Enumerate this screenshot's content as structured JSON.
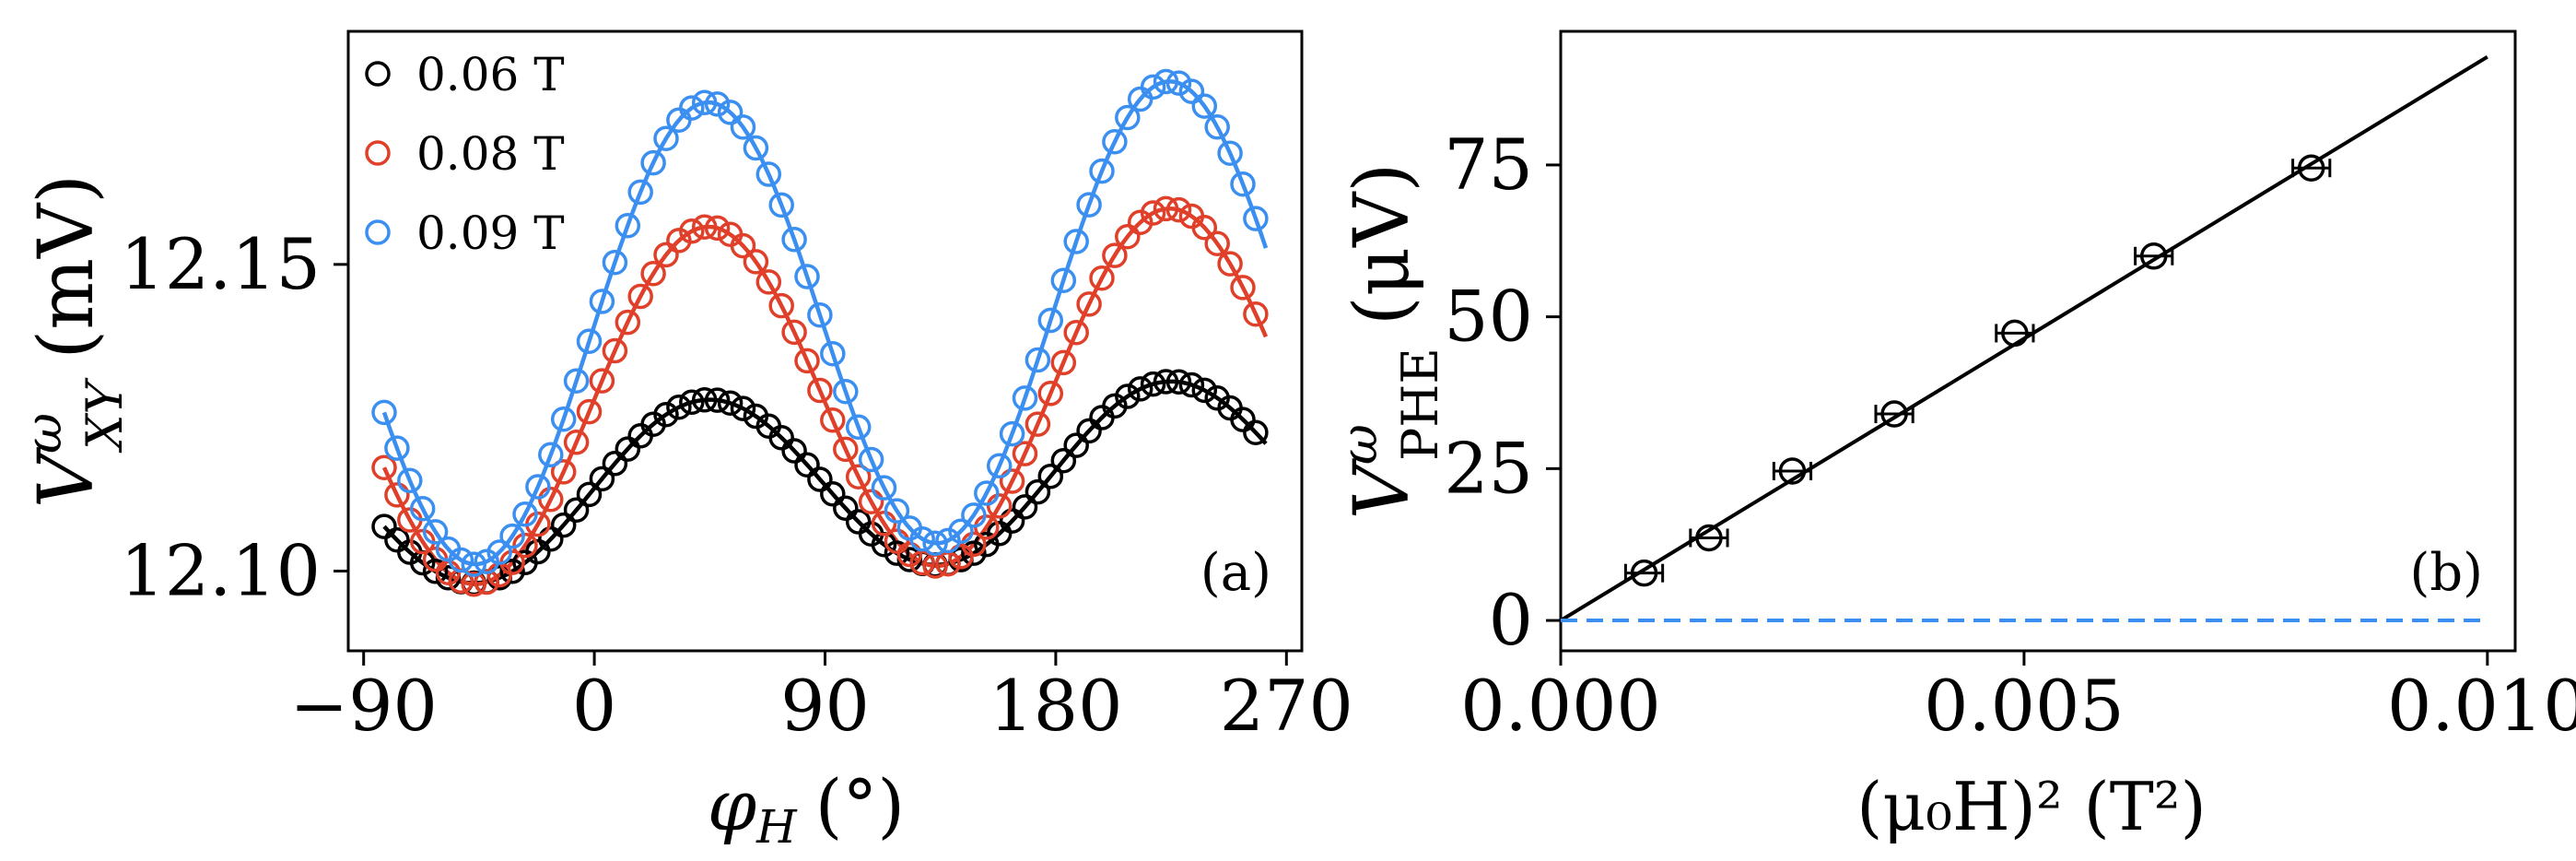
{
  "chart_data": [
    {
      "panel": "(a)",
      "type": "scatter",
      "xlabel_main": "φ",
      "xlabel_sub": "H",
      "xlabel_unit": "(°)",
      "ylabel_main": "V",
      "ylabel_sup": "ω",
      "ylabel_sub": "XY",
      "ylabel_unit": "(mV)",
      "xlim": [
        -96,
        276
      ],
      "ylim": [
        12.087,
        12.188
      ],
      "xticks": [
        -90,
        0,
        90,
        180,
        270
      ],
      "xtick_labels": [
        "−90",
        "0",
        "90",
        "180",
        "270"
      ],
      "yticks": [
        12.1,
        12.15
      ],
      "ytick_labels": [
        "12.10",
        "12.15"
      ],
      "legend_position": "top-left",
      "series": [
        {
          "name": "0.06 T",
          "color": "#000000",
          "offset": 12.1145,
          "amp": 0.0142,
          "phase": 44,
          "slope": 1.65e-05,
          "sampling": {
            "start": -82,
            "step": 5,
            "count": 69
          }
        },
        {
          "name": "0.08 T",
          "color": "#e0402a",
          "offset": 12.1285,
          "amp": 0.0284,
          "phase": 44,
          "slope": 1.65e-05,
          "sampling": {
            "start": -82,
            "step": 5,
            "count": 69
          }
        },
        {
          "name": "0.09 T",
          "color": "#3b8ff0",
          "offset": 12.1405,
          "amp": 0.0368,
          "phase": 44,
          "slope": 1.9e-05,
          "sampling": {
            "start": -82,
            "step": 5,
            "count": 69
          }
        }
      ]
    },
    {
      "panel": "(b)",
      "type": "scatter",
      "xlabel": "(μ₀H)² (T²)",
      "ylabel_main": "V",
      "ylabel_sup": "ω",
      "ylabel_sub": "PHE",
      "ylabel_unit": "(μV)",
      "xlim": [
        0,
        0.0103
      ],
      "ylim": [
        -5,
        97
      ],
      "xticks": [
        0,
        0.005,
        0.01
      ],
      "xtick_labels": [
        "0.000",
        "0.005",
        "0.010"
      ],
      "yticks": [
        0,
        25,
        50,
        75
      ],
      "ytick_labels": [
        "0",
        "25",
        "50",
        "75"
      ],
      "points": [
        {
          "x": 0.0009,
          "y": 7.8,
          "xerr": 0.0002
        },
        {
          "x": 0.0016,
          "y": 13.6,
          "xerr": 0.0002
        },
        {
          "x": 0.0025,
          "y": 24.6,
          "xerr": 0.0002
        },
        {
          "x": 0.0036,
          "y": 34.0,
          "xerr": 0.0002
        },
        {
          "x": 0.0049,
          "y": 47.3,
          "xerr": 0.0002
        },
        {
          "x": 0.0064,
          "y": 60.0,
          "xerr": 0.0002
        },
        {
          "x": 0.0081,
          "y": 74.5,
          "xerr": 0.0002
        }
      ],
      "fit_line": {
        "x": [
          0,
          0.01
        ],
        "y": [
          0,
          92.8
        ],
        "color": "#000000"
      },
      "zero_line": {
        "y": 0,
        "color": "#3b8ff0",
        "style": "dashed"
      }
    }
  ]
}
